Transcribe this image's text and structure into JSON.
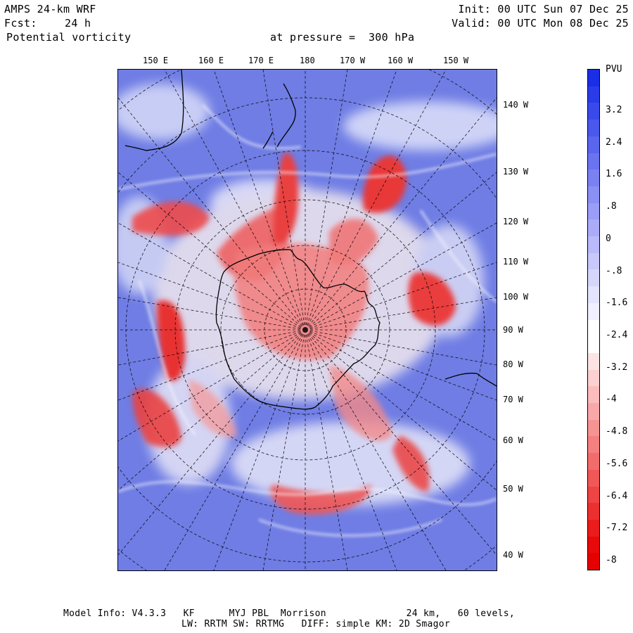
{
  "header": {
    "model": "AMPS 24-km WRF",
    "fcst_label": "Fcst:",
    "fcst_value": "24 h",
    "field": "Potential vorticity",
    "level_text": "at pressure =  300 hPa",
    "init": "Init: 00 UTC Sun 07 Dec 25",
    "valid": "Valid: 00 UTC Mon 08 Dec 25"
  },
  "map": {
    "top_labels": [
      "150 E",
      "160 E",
      "170 E",
      "180",
      "170 W",
      "160 W",
      "150 W"
    ],
    "right_labels": [
      "140 W",
      "130 W",
      "120 W",
      "110 W",
      "100 W",
      "90 W",
      "80 W",
      "70 W",
      "60 W",
      "50 W",
      "40 W"
    ]
  },
  "colorbar": {
    "unit": "PVU",
    "labels": [
      "3.2",
      "2.4",
      "1.6",
      ".8",
      "0",
      "-.8",
      "-1.6",
      "-2.4",
      "-3.2",
      "-4",
      "-4.8",
      "-5.6",
      "-6.4",
      "-7.2",
      "-8"
    ],
    "colors": [
      "#1a2ee6",
      "#2a3ce8",
      "#3a4aea",
      "#4a58ec",
      "#5a66ee",
      "#6a74f0",
      "#7a82f2",
      "#8a90f4",
      "#9a9ef6",
      "#aaacf8",
      "#babafa",
      "#c8c8fb",
      "#d6d6fc",
      "#e4e4fd",
      "#f0f0fe",
      "#ffffff",
      "#ffffff",
      "#fde4e4",
      "#fcd0d0",
      "#fabcbc",
      "#f8a8a8",
      "#f69494",
      "#f48080",
      "#f26c6c",
      "#f05858",
      "#ee4444",
      "#ec3030",
      "#ea1c1c",
      "#e80a0a",
      "#e60000"
    ]
  },
  "footer": {
    "line1": "Model Info: V4.3.3   KF      MYJ PBL  Morrison              24 km,   60 levels,",
    "line2": "LW: RRTM SW: RRTMG   DIFF: simple KM: 2D Smagor"
  }
}
